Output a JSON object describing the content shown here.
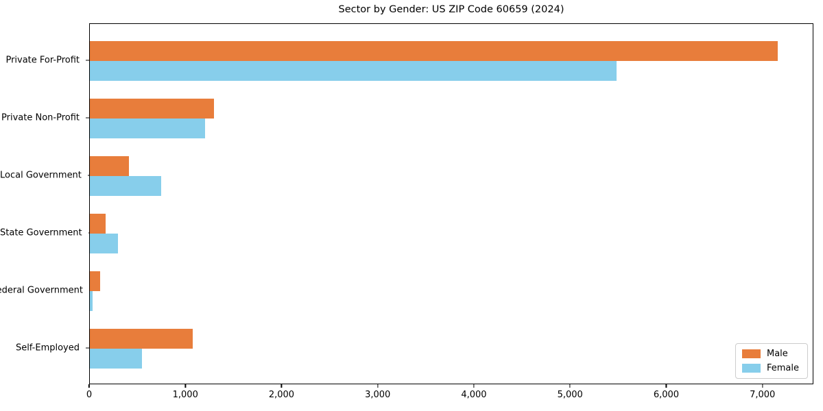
{
  "title": "Sector by Gender: US ZIP Code 60659 (2024)",
  "chart_data": {
    "type": "bar",
    "orientation": "horizontal",
    "title": "Sector by Gender: US ZIP Code 60659 (2024)",
    "categories": [
      "Private For-Profit",
      "Private Non-Profit",
      "Local Government",
      "State Government",
      "Federal Government",
      "Self-Employed"
    ],
    "series": [
      {
        "name": "Male",
        "color": "#e87d3b",
        "values": [
          7165,
          1290,
          405,
          165,
          110,
          1075
        ]
      },
      {
        "name": "Female",
        "color": "#87ceeb",
        "values": [
          5490,
          1200,
          745,
          295,
          30,
          545
        ]
      }
    ],
    "xlim": [
      0,
      7530
    ],
    "xticks": [
      0,
      1000,
      2000,
      3000,
      4000,
      5000,
      6000,
      7000
    ],
    "xtick_labels": [
      "0",
      "1,000",
      "2,000",
      "3,000",
      "4,000",
      "5,000",
      "6,000",
      "7,000"
    ],
    "xlabel": "",
    "ylabel": "",
    "grid": false,
    "legend_position": "lower right",
    "legend_labels": [
      "Male",
      "Female"
    ]
  },
  "colors": {
    "male": "#e87d3b",
    "female": "#87ceeb",
    "spine": "#000000",
    "legend_border": "#cccccc"
  }
}
